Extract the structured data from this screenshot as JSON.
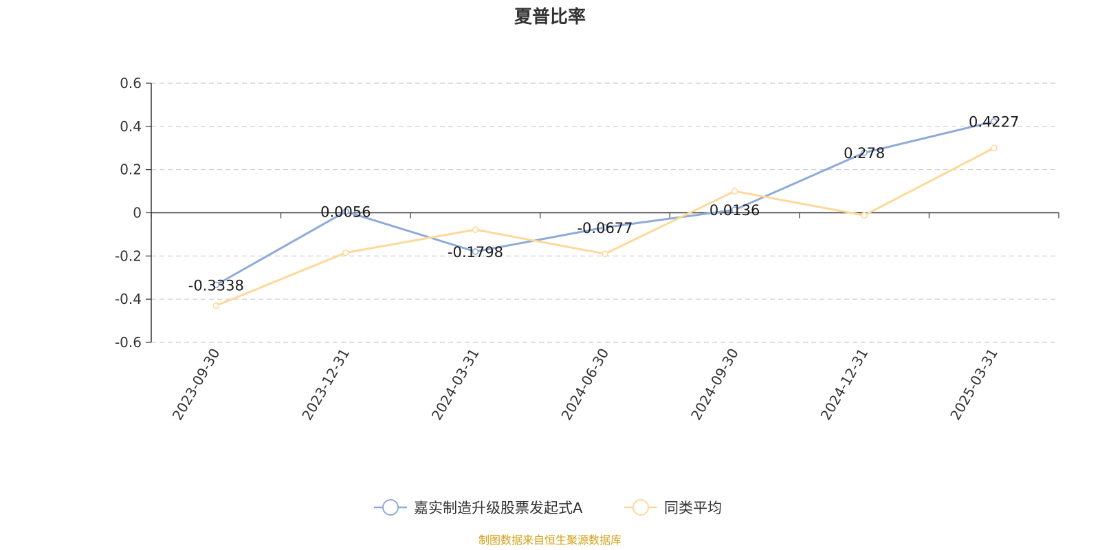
{
  "chart_data": {
    "type": "line",
    "title": "夏普比率",
    "categories": [
      "2023-09-30",
      "2023-12-31",
      "2024-03-31",
      "2024-06-30",
      "2024-09-30",
      "2024-12-31",
      "2025-03-31"
    ],
    "ylim": [
      -0.6,
      0.6
    ],
    "yticks": [
      -0.6,
      -0.4,
      -0.2,
      0,
      0.2,
      0.4,
      0.6
    ],
    "ytick_labels": [
      "-0.6",
      "-0.4",
      "-0.2",
      "0",
      "0.2",
      "0.4",
      "0.6"
    ],
    "grid": true,
    "legend_position": "bottom-center",
    "series": [
      {
        "name": "嘉实制造升级股票发起式A",
        "color": "#8eabd8",
        "values": [
          -0.3338,
          0.0056,
          -0.1798,
          -0.0677,
          0.0136,
          0.278,
          0.4227
        ],
        "labels": [
          "-0.3338",
          "0.0056",
          "-0.1798",
          "-0.0677",
          "0.0136",
          "0.278",
          "0.4227"
        ]
      },
      {
        "name": "同类平均",
        "color": "#fcd99a",
        "values": [
          -0.43,
          -0.185,
          -0.078,
          -0.19,
          0.1,
          -0.012,
          0.3
        ]
      }
    ]
  },
  "source": {
    "text": "制图数据来自恒生聚源数据库",
    "color": "#d4a017"
  }
}
